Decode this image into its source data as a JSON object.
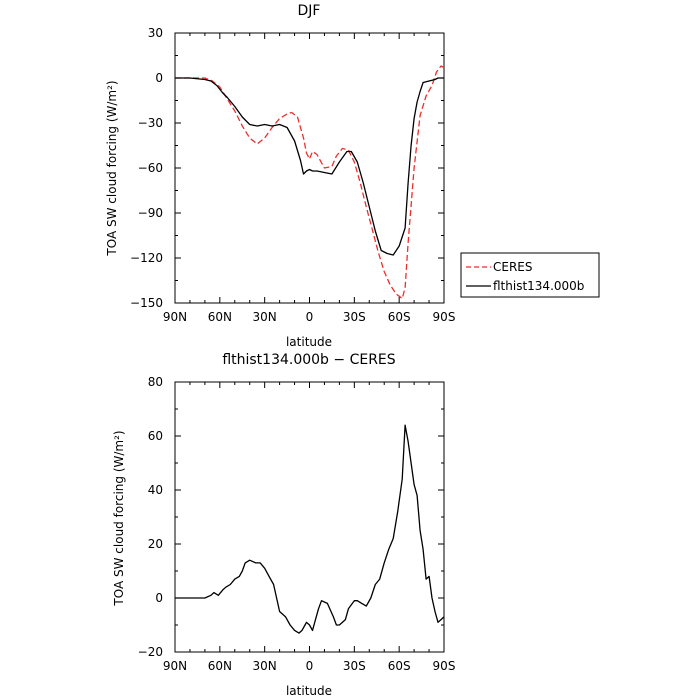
{
  "chart_data": [
    {
      "type": "line",
      "title": "DJF",
      "xlabel": "latitude",
      "ylabel": "TOA SW cloud forcing (W/m²)",
      "xlim": [
        90,
        -90
      ],
      "ylim": [
        -150,
        30
      ],
      "x_ticks": [
        90,
        60,
        30,
        0,
        -30,
        -60,
        -90
      ],
      "x_tick_labels": [
        "90N",
        "60N",
        "30N",
        "0",
        "30S",
        "60S",
        "90S"
      ],
      "y_ticks": [
        30,
        0,
        -30,
        -60,
        -90,
        -120,
        -150
      ],
      "y_tick_labels": [
        "30",
        "0",
        "−30",
        "−60",
        "−90",
        "−120",
        "−150"
      ],
      "legend_position": "outside-right",
      "series": [
        {
          "name": "CERES",
          "color": "#e8302e",
          "dash": "dashed",
          "x": [
            90,
            80,
            70,
            65,
            60,
            55,
            50,
            45,
            40,
            35,
            30,
            25,
            20,
            15,
            12,
            8,
            4,
            2,
            0,
            -2,
            -5,
            -10,
            -15,
            -18,
            -22,
            -26,
            -30,
            -34,
            -38,
            -42,
            -46,
            -50,
            -54,
            -58,
            -62,
            -64,
            -66,
            -70,
            -74,
            -78,
            -82,
            -85,
            -88,
            -90
          ],
          "y": [
            0,
            0,
            0,
            -2,
            -6,
            -14,
            -22,
            -32,
            -40,
            -44,
            -40,
            -33,
            -27,
            -24,
            -23,
            -26,
            -40,
            -50,
            -54,
            -49,
            -51,
            -60,
            -59,
            -52,
            -47,
            -48,
            -56,
            -70,
            -86,
            -101,
            -116,
            -129,
            -138,
            -144,
            -147,
            -140,
            -110,
            -60,
            -25,
            -12,
            -5,
            4,
            8,
            7
          ]
        },
        {
          "name": "flthist134.000b",
          "color": "#000000",
          "dash": "solid",
          "x": [
            90,
            80,
            70,
            66,
            62,
            58,
            55,
            50,
            45,
            40,
            35,
            30,
            25,
            20,
            15,
            10,
            6,
            4,
            2,
            0,
            -2,
            -5,
            -10,
            -15,
            -20,
            -25,
            -28,
            -32,
            -36,
            -40,
            -44,
            -48,
            -52,
            -56,
            -60,
            -64,
            -66,
            -68,
            -70,
            -72,
            -74,
            -76,
            -80,
            -84,
            -86,
            -88,
            -90
          ],
          "y": [
            0,
            0,
            -1,
            -2,
            -5,
            -10,
            -13,
            -19,
            -26,
            -31,
            -32,
            -31,
            -32,
            -31,
            -33,
            -42,
            -55,
            -64,
            -62,
            -61,
            -62,
            -62,
            -63,
            -64,
            -56,
            -49,
            -49,
            -56,
            -70,
            -86,
            -102,
            -115,
            -117,
            -118,
            -112,
            -100,
            -70,
            -45,
            -27,
            -16,
            -9,
            -3,
            -2,
            -1,
            0,
            0,
            0
          ]
        }
      ]
    },
    {
      "type": "line",
      "title": "flthist134.000b − CERES",
      "xlabel": "latitude",
      "ylabel": "TOA SW cloud forcing (W/m²)",
      "xlim": [
        90,
        -90
      ],
      "ylim": [
        -20,
        80
      ],
      "x_ticks": [
        90,
        60,
        30,
        0,
        -30,
        -60,
        -90
      ],
      "x_tick_labels": [
        "90N",
        "60N",
        "30N",
        "0",
        "30S",
        "60S",
        "90S"
      ],
      "y_ticks": [
        80,
        60,
        40,
        20,
        0,
        -20
      ],
      "y_tick_labels": [
        "80",
        "60",
        "40",
        "20",
        "0",
        "−20"
      ],
      "series": [
        {
          "color": "#000000",
          "dash": "solid",
          "x": [
            90,
            80,
            70,
            66,
            64,
            61,
            58,
            56,
            53,
            50,
            47,
            45,
            43,
            40,
            36,
            33,
            30,
            27,
            24,
            20,
            16,
            13,
            10,
            7,
            5,
            3,
            2,
            0,
            -2,
            -4,
            -6,
            -8,
            -12,
            -16,
            -18,
            -20,
            -24,
            -26,
            -30,
            -32,
            -35,
            -38,
            -41,
            -44,
            -47,
            -50,
            -53,
            -56,
            -59,
            -62,
            -64,
            -66,
            -68,
            -70,
            -72,
            -74,
            -76,
            -78,
            -80,
            -82,
            -84,
            -86,
            -88,
            -90
          ],
          "y": [
            0,
            0,
            0,
            1,
            2,
            1,
            3,
            4,
            5,
            7,
            8,
            10,
            13,
            14,
            13,
            13,
            11,
            8,
            5,
            -5,
            -7,
            -10,
            -12,
            -13,
            -12,
            -10,
            -9,
            -10,
            -12,
            -8,
            -4,
            -1,
            -2,
            -7,
            -10,
            -10,
            -8,
            -4,
            -1,
            -1,
            -2,
            -3,
            0,
            5,
            7,
            13,
            18,
            22,
            32,
            44,
            64,
            58,
            50,
            42,
            38,
            25,
            18,
            7,
            8,
            0,
            -5,
            -9,
            -8,
            -7
          ]
        }
      ]
    }
  ]
}
